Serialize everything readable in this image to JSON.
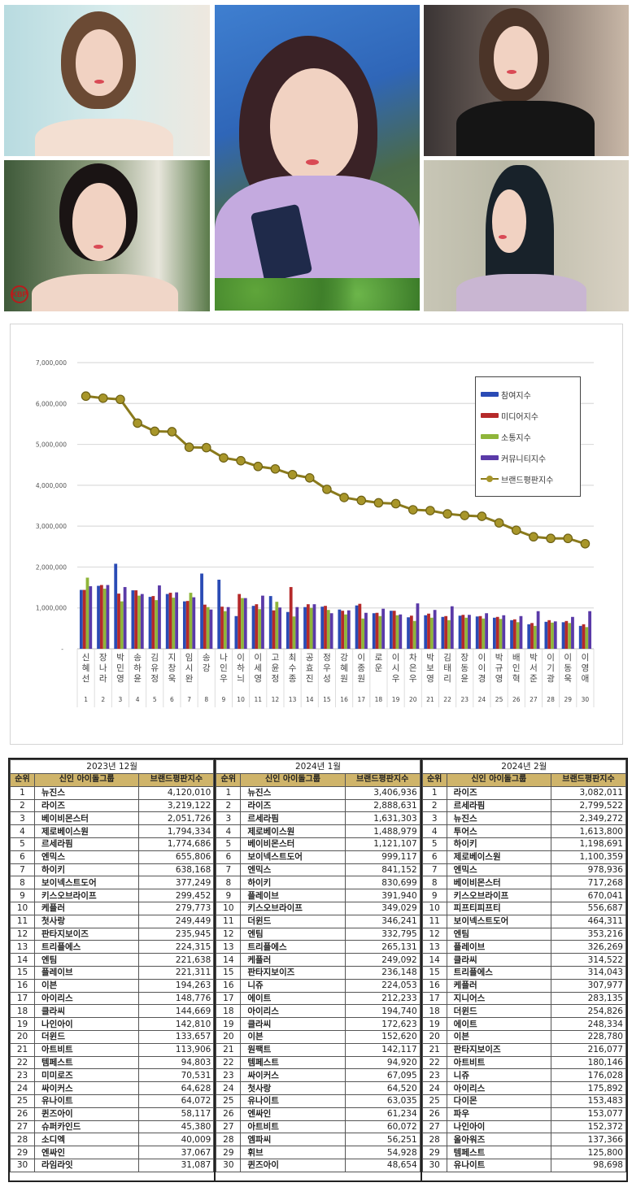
{
  "photos": [
    {
      "id": "photo-top-left",
      "desc": "actress short brown hair, white top, light blue background"
    },
    {
      "id": "photo-center",
      "desc": "actress smiling, hand on cheek, lavender shirt, holding cassette player, green leaves"
    },
    {
      "id": "photo-top-right",
      "desc": "actress with shag haircut, black jacket with pearl buttons"
    },
    {
      "id": "photo-bottom-left",
      "desc": "actress with hair up, diamond necklace, white flowers",
      "watermark": "KBP"
    },
    {
      "id": "photo-bottom-right",
      "desc": "actress long black hair, side profile, lilac top"
    }
  ],
  "chart_data": {
    "type": "bar+line",
    "title": "",
    "xlabel": "",
    "ylabel": "",
    "ylim": [
      0,
      7000000
    ],
    "yticks": [
      "-",
      "1,000,000",
      "2,000,000",
      "3,000,000",
      "4,000,000",
      "5,000,000",
      "6,000,000",
      "7,000,000"
    ],
    "grid": true,
    "legend_position": "upper-right inside",
    "categories": [
      "신혜선",
      "장나라",
      "박민영",
      "송하윤",
      "김유정",
      "지창욱",
      "임시완",
      "송강",
      "나인우",
      "이하늬",
      "이세영",
      "고윤정",
      "최수종",
      "공효진",
      "정우성",
      "강혜원",
      "이종원",
      "로운",
      "이시우",
      "차은우",
      "박보영",
      "김태리",
      "장동윤",
      "이이경",
      "박규영",
      "배인혁",
      "박서준",
      "이기광",
      "이동욱",
      "이영애"
    ],
    "ranks": [
      1,
      2,
      3,
      4,
      5,
      6,
      7,
      8,
      9,
      10,
      11,
      12,
      13,
      14,
      15,
      16,
      17,
      18,
      19,
      20,
      21,
      22,
      23,
      24,
      25,
      26,
      27,
      28,
      29,
      30
    ],
    "series": [
      {
        "name": "참여지수",
        "type": "bar",
        "color": "#2a4bb5",
        "values": [
          1440000,
          1540000,
          2080000,
          1430000,
          1270000,
          1340000,
          1160000,
          1840000,
          1690000,
          800000,
          1050000,
          1290000,
          900000,
          1020000,
          1030000,
          960000,
          1060000,
          870000,
          930000,
          770000,
          820000,
          780000,
          810000,
          790000,
          760000,
          700000,
          600000,
          660000,
          650000,
          560000
        ]
      },
      {
        "name": "미디어지수",
        "type": "bar",
        "color": "#b52a2a",
        "values": [
          1440000,
          1560000,
          1350000,
          1430000,
          1290000,
          1370000,
          1170000,
          1080000,
          1030000,
          1340000,
          1090000,
          940000,
          1510000,
          1090000,
          1050000,
          930000,
          1100000,
          880000,
          930000,
          810000,
          860000,
          800000,
          830000,
          800000,
          780000,
          720000,
          630000,
          700000,
          680000,
          600000
        ]
      },
      {
        "name": "소통지수",
        "type": "bar",
        "color": "#8fb53a",
        "values": [
          1740000,
          1470000,
          1160000,
          1300000,
          1190000,
          1250000,
          1370000,
          1020000,
          920000,
          1240000,
          970000,
          1150000,
          790000,
          1000000,
          950000,
          840000,
          740000,
          800000,
          820000,
          680000,
          760000,
          700000,
          760000,
          740000,
          730000,
          650000,
          560000,
          640000,
          630000,
          530000
        ]
      },
      {
        "name": "커뮤니티지수",
        "type": "bar",
        "color": "#5a3aa8",
        "values": [
          1530000,
          1560000,
          1510000,
          1340000,
          1550000,
          1380000,
          1260000,
          960000,
          1020000,
          1240000,
          1300000,
          1010000,
          1020000,
          1090000,
          870000,
          940000,
          880000,
          980000,
          840000,
          1110000,
          950000,
          1040000,
          830000,
          870000,
          820000,
          800000,
          920000,
          670000,
          780000,
          920000
        ]
      },
      {
        "name": "브랜드평판지수",
        "type": "line",
        "color": "#8a7a1c",
        "values": [
          6180000,
          6130000,
          6100000,
          5520000,
          5320000,
          5310000,
          4930000,
          4920000,
          4670000,
          4600000,
          4460000,
          4400000,
          4260000,
          4180000,
          3900000,
          3700000,
          3630000,
          3570000,
          3550000,
          3400000,
          3380000,
          3300000,
          3260000,
          3240000,
          3080000,
          2900000,
          2740000,
          2700000,
          2700000,
          2570000
        ]
      }
    ]
  },
  "chart": {
    "yticks": [
      {
        "label": "7,000,000",
        "v": 7000000
      },
      {
        "label": "6,000,000",
        "v": 6000000
      },
      {
        "label": "5,000,000",
        "v": 5000000
      },
      {
        "label": "4,000,000",
        "v": 4000000
      },
      {
        "label": "3,000,000",
        "v": 3000000
      },
      {
        "label": "2,000,000",
        "v": 2000000
      },
      {
        "label": "1,000,000",
        "v": 1000000
      },
      {
        "label": "-",
        "v": 0
      }
    ],
    "legend": [
      {
        "label": "참여지수",
        "color": "#2a4bb5",
        "kind": "bar"
      },
      {
        "label": "미디어지수",
        "color": "#b52a2a",
        "kind": "bar"
      },
      {
        "label": "소통지수",
        "color": "#8fb53a",
        "kind": "bar"
      },
      {
        "label": "커뮤니티지수",
        "color": "#5a3aa8",
        "kind": "bar"
      },
      {
        "label": "브랜드평판지수",
        "color": "#8a7a1c",
        "kind": "line"
      }
    ]
  },
  "tables": [
    {
      "month": "2023년 12월",
      "headers": [
        "순위",
        "신인 아이돌그룹",
        "브랜드평판지수"
      ],
      "rows": [
        [
          "1",
          "뉴진스",
          "4,120,010"
        ],
        [
          "2",
          "라이즈",
          "3,219,122"
        ],
        [
          "3",
          "베이비몬스터",
          "2,051,726"
        ],
        [
          "4",
          "제로베이스원",
          "1,794,334"
        ],
        [
          "5",
          "르세라핌",
          "1,774,686"
        ],
        [
          "6",
          "엔믹스",
          "655,806"
        ],
        [
          "7",
          "하이키",
          "638,168"
        ],
        [
          "8",
          "보이넥스트도어",
          "377,249"
        ],
        [
          "9",
          "키스오브라이프",
          "299,452"
        ],
        [
          "10",
          "케플러",
          "279,773"
        ],
        [
          "11",
          "첫사랑",
          "249,449"
        ],
        [
          "12",
          "판타지보이즈",
          "235,945"
        ],
        [
          "13",
          "트리플에스",
          "224,315"
        ],
        [
          "14",
          "엔팀",
          "221,638"
        ],
        [
          "15",
          "플레이브",
          "221,311"
        ],
        [
          "16",
          "이븐",
          "194,263"
        ],
        [
          "17",
          "아이리스",
          "148,776"
        ],
        [
          "18",
          "클라씨",
          "144,669"
        ],
        [
          "19",
          "나인아이",
          "142,810"
        ],
        [
          "20",
          "더윈드",
          "133,657"
        ],
        [
          "21",
          "아트비트",
          "113,906"
        ],
        [
          "22",
          "템페스트",
          "94,803"
        ],
        [
          "23",
          "미미로즈",
          "70,531"
        ],
        [
          "24",
          "싸이커스",
          "64,628"
        ],
        [
          "25",
          "유나이트",
          "64,072"
        ],
        [
          "26",
          "퀸즈아이",
          "58,117"
        ],
        [
          "27",
          "슈퍼카인드",
          "45,380"
        ],
        [
          "28",
          "소디엑",
          "40,009"
        ],
        [
          "29",
          "엔싸인",
          "37,067"
        ],
        [
          "30",
          "라임라잇",
          "31,087"
        ]
      ]
    },
    {
      "month": "2024년 1월",
      "headers": [
        "순위",
        "신인 아이돌그룹",
        "브랜드평판지수"
      ],
      "rows": [
        [
          "1",
          "뉴진스",
          "3,406,936"
        ],
        [
          "2",
          "라이즈",
          "2,888,631"
        ],
        [
          "3",
          "르세라핌",
          "1,631,303"
        ],
        [
          "4",
          "제로베이스원",
          "1,488,979"
        ],
        [
          "5",
          "베이비몬스터",
          "1,121,107"
        ],
        [
          "6",
          "보이넥스트도어",
          "999,117"
        ],
        [
          "7",
          "엔믹스",
          "841,152"
        ],
        [
          "8",
          "하이키",
          "830,699"
        ],
        [
          "9",
          "플레이브",
          "391,940"
        ],
        [
          "10",
          "키스오브라이프",
          "349,029"
        ],
        [
          "11",
          "더윈드",
          "346,241"
        ],
        [
          "12",
          "엔팀",
          "332,795"
        ],
        [
          "13",
          "트리플에스",
          "265,131"
        ],
        [
          "14",
          "케플러",
          "249,092"
        ],
        [
          "15",
          "판타지보이즈",
          "236,148"
        ],
        [
          "16",
          "니쥬",
          "224,053"
        ],
        [
          "17",
          "에이트",
          "212,233"
        ],
        [
          "18",
          "아이리스",
          "194,740"
        ],
        [
          "19",
          "클라씨",
          "172,623"
        ],
        [
          "20",
          "이븐",
          "152,620"
        ],
        [
          "21",
          "원팩트",
          "142,117"
        ],
        [
          "22",
          "템페스트",
          "94,920"
        ],
        [
          "23",
          "싸이커스",
          "67,095"
        ],
        [
          "24",
          "첫사랑",
          "64,520"
        ],
        [
          "25",
          "유나이트",
          "63,035"
        ],
        [
          "26",
          "엔싸인",
          "61,234"
        ],
        [
          "27",
          "아트비트",
          "60,072"
        ],
        [
          "28",
          "엠파씨",
          "56,251"
        ],
        [
          "29",
          "휘브",
          "54,928"
        ],
        [
          "30",
          "퀸즈아이",
          "48,654"
        ]
      ]
    },
    {
      "month": "2024년 2월",
      "headers": [
        "순위",
        "신인 아이돌그룹",
        "브랜드평판지수"
      ],
      "rows": [
        [
          "1",
          "라이즈",
          "3,082,011"
        ],
        [
          "2",
          "르세라핌",
          "2,799,522"
        ],
        [
          "3",
          "뉴진스",
          "2,349,272"
        ],
        [
          "4",
          "투어스",
          "1,613,800"
        ],
        [
          "5",
          "하이키",
          "1,198,691"
        ],
        [
          "6",
          "제로베이스원",
          "1,100,359"
        ],
        [
          "7",
          "엔믹스",
          "978,936"
        ],
        [
          "8",
          "베이비몬스터",
          "717,268"
        ],
        [
          "9",
          "키스오브라이프",
          "670,041"
        ],
        [
          "10",
          "피프티피프티",
          "556,687"
        ],
        [
          "11",
          "보이넥스트도어",
          "464,311"
        ],
        [
          "12",
          "엔팀",
          "353,216"
        ],
        [
          "13",
          "플레이브",
          "326,269"
        ],
        [
          "14",
          "클라씨",
          "314,522"
        ],
        [
          "15",
          "트리플에스",
          "314,043"
        ],
        [
          "16",
          "케플러",
          "307,977"
        ],
        [
          "17",
          "지니어스",
          "283,135"
        ],
        [
          "18",
          "더윈드",
          "254,826"
        ],
        [
          "19",
          "에이트",
          "248,334"
        ],
        [
          "20",
          "이븐",
          "228,780"
        ],
        [
          "21",
          "판타지보이즈",
          "216,077"
        ],
        [
          "22",
          "아트비트",
          "180,146"
        ],
        [
          "23",
          "니쥬",
          "176,028"
        ],
        [
          "24",
          "아이리스",
          "175,892"
        ],
        [
          "25",
          "다이몬",
          "153,483"
        ],
        [
          "26",
          "파우",
          "153,077"
        ],
        [
          "27",
          "나인아이",
          "152,372"
        ],
        [
          "28",
          "올아워즈",
          "137,366"
        ],
        [
          "29",
          "템페스트",
          "125,800"
        ],
        [
          "30",
          "유나이트",
          "98,698"
        ]
      ]
    }
  ]
}
